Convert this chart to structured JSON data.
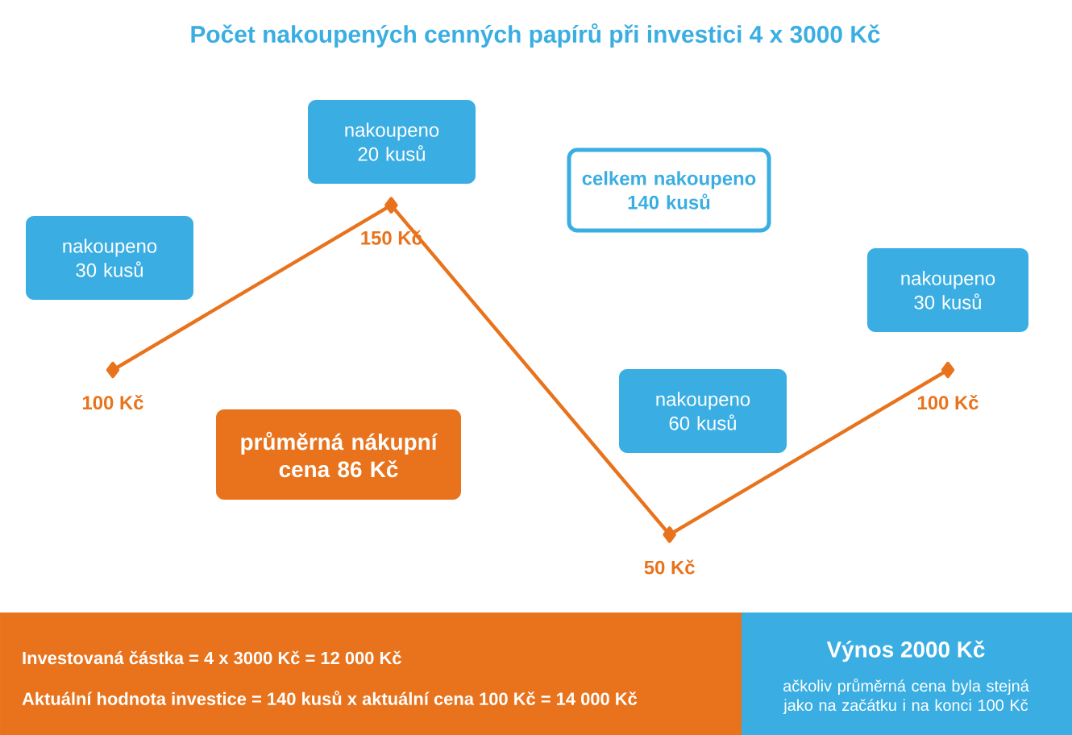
{
  "chart_data": {
    "type": "line",
    "title": "Počet nakoupených cenných papírů při investici 4 x 3000 Kč",
    "categories": [
      null,
      null,
      null,
      null
    ],
    "values": [
      100,
      150,
      50,
      100
    ],
    "value_labels": [
      "100 Kč",
      "150 Kč",
      "50 Kč",
      "100 Kč"
    ],
    "color": "#e8731c",
    "marker": "diamond",
    "line_style": "solid",
    "annotations": [
      "nakoupeno 30 kusů",
      "nakoupeno 20 kusů",
      "nakoupeno 60 kusů",
      "nakoupeno 30 kusů",
      "celkem nakoupeno 140 kusů",
      "průměrná nákupní cena 86 Kč",
      "Investovaná částka = 4 x 3000 Kč = 12 000 Kč",
      "Aktuální hodnota investice = 140 kusů x aktuální cena 100 Kč = 14 000 Kč",
      "Výnos 2000 Kč",
      "ačkoliv průměrná cena byla stejná jako na začátku i na konci 100 Kč"
    ]
  }
}
